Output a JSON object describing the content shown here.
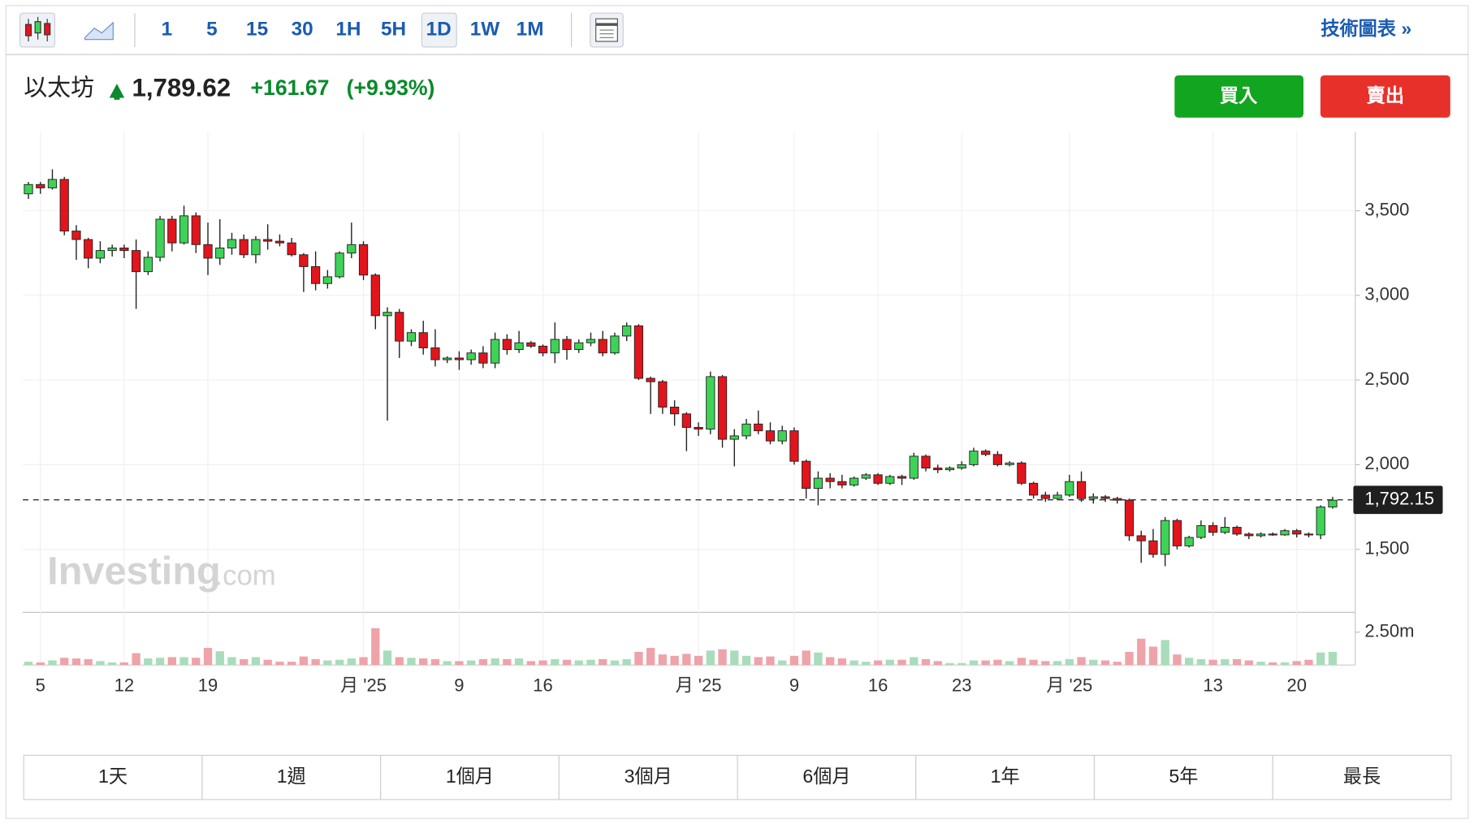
{
  "toolbar": {
    "intervals": [
      "1",
      "5",
      "15",
      "30",
      "1H",
      "5H",
      "1D",
      "1W",
      "1M"
    ],
    "link": "技術圖表 »"
  },
  "header": {
    "name": "以太坊",
    "price": "1,789.62",
    "change": "+161.67",
    "change_pct": "(+9.93%)"
  },
  "buttons": {
    "buy": "買入",
    "sell": "賣出"
  },
  "chart_data": {
    "type": "candlestick",
    "categories": [
      null,
      "5",
      null,
      null,
      null,
      null,
      null,
      null,
      "12",
      null,
      null,
      null,
      null,
      null,
      null,
      "19",
      null,
      null,
      null,
      null,
      null,
      null,
      null,
      null,
      null,
      null,
      null,
      null,
      "月 '25",
      null,
      null,
      null,
      null,
      null,
      null,
      null,
      "9",
      null,
      null,
      null,
      null,
      null,
      null,
      "16",
      null,
      null,
      null,
      null,
      null,
      null,
      null,
      null,
      null,
      null,
      null,
      null,
      "月 '25",
      null,
      null,
      null,
      null,
      null,
      null,
      null,
      "9",
      null,
      null,
      null,
      null,
      null,
      null,
      "16",
      null,
      null,
      null,
      null,
      null,
      null,
      "23",
      null,
      null,
      null,
      null,
      null,
      null,
      null,
      null,
      "月 '25",
      null,
      null,
      null,
      null,
      null,
      null,
      null,
      null,
      null,
      null,
      null,
      "13",
      null,
      null,
      null,
      null,
      null,
      null,
      "20",
      null,
      null,
      null
    ],
    "open": [
      3600,
      3655,
      3635,
      3685,
      3380,
      3330,
      3220,
      3265,
      3280,
      3265,
      3140,
      3225,
      3450,
      3310,
      3470,
      3300,
      3220,
      3280,
      3330,
      3240,
      3330,
      3320,
      3310,
      3240,
      3170,
      3070,
      3110,
      3250,
      3300,
      3120,
      2880,
      2900,
      2730,
      2780,
      2690,
      2620,
      2630,
      2620,
      2660,
      2600,
      2740,
      2680,
      2720,
      2700,
      2660,
      2740,
      2680,
      2720,
      2740,
      2660,
      2760,
      2820,
      2510,
      2490,
      2340,
      2300,
      2220,
      2210,
      2520,
      2150,
      2170,
      2240,
      2200,
      2140,
      2200,
      2020,
      1860,
      1920,
      1900,
      1880,
      1920,
      1940,
      1890,
      1930,
      1920,
      2050,
      1980,
      1970,
      1980,
      2000,
      2080,
      2060,
      2000,
      2010,
      1890,
      1820,
      1800,
      1820,
      1900,
      1800,
      1810,
      1800,
      1790,
      1580,
      1550,
      1470,
      1670,
      1520,
      1570,
      1640,
      1600,
      1630,
      1590,
      1580,
      1590,
      1585,
      1610,
      1590,
      1585,
      1750
    ],
    "high": [
      3670,
      3670,
      3745,
      3700,
      3415,
      3340,
      3320,
      3300,
      3300,
      3330,
      3260,
      3470,
      3470,
      3530,
      3490,
      3430,
      3450,
      3370,
      3360,
      3350,
      3420,
      3360,
      3340,
      3250,
      3260,
      3150,
      3260,
      3430,
      3320,
      3130,
      2930,
      2920,
      2800,
      2850,
      2800,
      2640,
      2670,
      2680,
      2700,
      2780,
      2770,
      2790,
      2730,
      2710,
      2840,
      2760,
      2740,
      2780,
      2790,
      2780,
      2840,
      2830,
      2520,
      2500,
      2380,
      2310,
      2250,
      2550,
      2530,
      2210,
      2270,
      2320,
      2250,
      2230,
      2220,
      2030,
      1960,
      1950,
      1940,
      1930,
      1950,
      1950,
      1940,
      1940,
      2070,
      2060,
      2000,
      1990,
      2020,
      2100,
      2090,
      2080,
      2020,
      2020,
      1900,
      1840,
      1840,
      1940,
      1960,
      1830,
      1820,
      1810,
      1800,
      1610,
      1620,
      1690,
      1680,
      1580,
      1670,
      1660,
      1690,
      1640,
      1600,
      1600,
      1600,
      1620,
      1620,
      1600,
      1760,
      1810
    ],
    "low": [
      3570,
      3600,
      3625,
      3355,
      3210,
      3160,
      3190,
      3230,
      3220,
      2920,
      3120,
      3200,
      3260,
      3300,
      3250,
      3120,
      3180,
      3240,
      3220,
      3190,
      3270,
      3290,
      3230,
      3020,
      3030,
      3040,
      3100,
      3220,
      3090,
      2800,
      2260,
      2630,
      2700,
      2650,
      2580,
      2600,
      2560,
      2590,
      2570,
      2570,
      2650,
      2660,
      2690,
      2640,
      2600,
      2620,
      2660,
      2700,
      2640,
      2650,
      2730,
      2500,
      2300,
      2300,
      2230,
      2080,
      2170,
      2180,
      2100,
      1990,
      2150,
      2180,
      2120,
      2120,
      2000,
      1800,
      1760,
      1860,
      1860,
      1870,
      1910,
      1880,
      1880,
      1880,
      1910,
      1960,
      1950,
      1960,
      1970,
      1990,
      2050,
      1990,
      1990,
      1880,
      1800,
      1780,
      1790,
      1810,
      1780,
      1770,
      1780,
      1770,
      1550,
      1420,
      1450,
      1400,
      1500,
      1510,
      1560,
      1580,
      1590,
      1580,
      1560,
      1570,
      1580,
      1580,
      1570,
      1570,
      1560,
      1740
    ],
    "close": [
      3655,
      3635,
      3685,
      3380,
      3330,
      3220,
      3265,
      3280,
      3265,
      3140,
      3225,
      3450,
      3310,
      3470,
      3300,
      3220,
      3280,
      3330,
      3240,
      3330,
      3320,
      3310,
      3240,
      3170,
      3070,
      3110,
      3250,
      3300,
      3120,
      2880,
      2900,
      2730,
      2780,
      2690,
      2620,
      2630,
      2620,
      2660,
      2600,
      2740,
      2680,
      2720,
      2700,
      2660,
      2740,
      2680,
      2720,
      2740,
      2660,
      2760,
      2820,
      2510,
      2490,
      2340,
      2300,
      2220,
      2210,
      2520,
      2150,
      2170,
      2240,
      2200,
      2140,
      2200,
      2020,
      1860,
      1920,
      1900,
      1880,
      1920,
      1940,
      1890,
      1930,
      1920,
      2050,
      1980,
      1970,
      1980,
      2000,
      2080,
      2060,
      2000,
      2010,
      1890,
      1820,
      1800,
      1820,
      1900,
      1800,
      1810,
      1800,
      1790,
      1580,
      1550,
      1470,
      1670,
      1520,
      1570,
      1640,
      1600,
      1630,
      1590,
      1580,
      1590,
      1585,
      1610,
      1590,
      1585,
      1750,
      1790
    ],
    "volume": [
      0.25,
      0.2,
      0.35,
      0.55,
      0.5,
      0.45,
      0.3,
      0.2,
      0.2,
      0.9,
      0.5,
      0.55,
      0.6,
      0.6,
      0.55,
      1.3,
      1.05,
      0.6,
      0.45,
      0.6,
      0.4,
      0.25,
      0.25,
      0.65,
      0.45,
      0.35,
      0.4,
      0.5,
      0.6,
      2.8,
      1.1,
      0.6,
      0.55,
      0.5,
      0.45,
      0.3,
      0.3,
      0.35,
      0.45,
      0.5,
      0.45,
      0.5,
      0.3,
      0.35,
      0.45,
      0.4,
      0.35,
      0.4,
      0.45,
      0.35,
      0.45,
      1.0,
      1.3,
      0.8,
      0.7,
      0.85,
      0.7,
      1.1,
      1.2,
      1.1,
      0.7,
      0.6,
      0.65,
      0.35,
      0.7,
      1.1,
      0.95,
      0.6,
      0.5,
      0.35,
      0.25,
      0.35,
      0.4,
      0.4,
      0.6,
      0.45,
      0.3,
      0.15,
      0.15,
      0.35,
      0.35,
      0.4,
      0.3,
      0.55,
      0.4,
      0.3,
      0.3,
      0.45,
      0.6,
      0.4,
      0.35,
      0.25,
      1.0,
      2.0,
      1.4,
      1.9,
      0.8,
      0.55,
      0.45,
      0.4,
      0.45,
      0.45,
      0.35,
      0.25,
      0.2,
      0.2,
      0.3,
      0.4,
      0.95,
      1.0
    ],
    "ylim": [
      1133,
      3967
    ],
    "yticks": [
      {
        "value": 1500,
        "label": "1,500"
      },
      {
        "value": 2000,
        "label": "2,000"
      },
      {
        "value": 2500,
        "label": "2,500"
      },
      {
        "value": 3000,
        "label": "3,000"
      },
      {
        "value": 3500,
        "label": "3,500"
      }
    ],
    "volume_lim": [
      0,
      3.93
    ],
    "volume_ticks": [
      {
        "value": 2.5,
        "label": "2.50m"
      }
    ],
    "last_price": {
      "value": 1792.15,
      "label": "1,792.15"
    },
    "grid": true,
    "up_color": "#3ed356",
    "down_color": "#e3141c",
    "volume_up_color": "#a9dcbb",
    "volume_down_color": "#eea3a9",
    "watermark": [
      "Investing",
      ".com"
    ]
  },
  "ranges": [
    "1天",
    "1週",
    "1個月",
    "3個月",
    "6個月",
    "1年",
    "5年",
    "最長"
  ]
}
